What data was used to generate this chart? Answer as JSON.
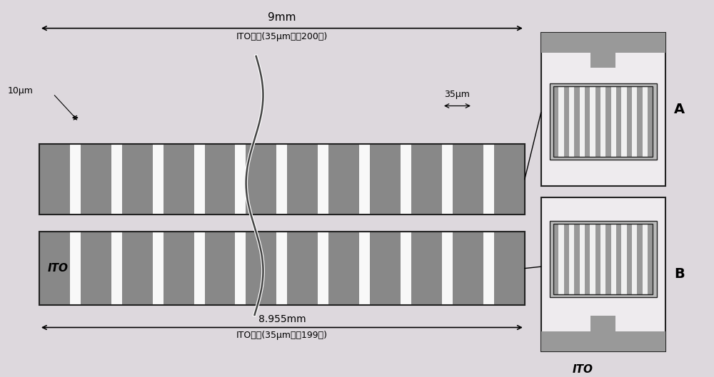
{
  "bg_color": "#ddd8dd",
  "fig_width": 10.0,
  "fig_height": 5.29,
  "label_9mm": "9mm",
  "label_ito_200": "ITO基线(35μm宽、200根)",
  "label_ito_199": "ITO基线(35μm宽、199根)",
  "label_10um": "10μm",
  "label_35um": "35μm",
  "label_8955": "8.955mm",
  "label_ITO_bar": "ITO",
  "label_ITO_bot": "ITO",
  "label_A": "A",
  "label_B": "B",
  "bar_dark": "#888888",
  "bar_white": "#f8f8f8",
  "bar_border": "#222222",
  "panel_bg": "#eeebee",
  "panel_border": "#222222",
  "panel_tab_color": "#999999",
  "panel_inner_border": "#555555",
  "panel_inner_bg": "#bbbbbb",
  "panel_stripe_dark": "#999999",
  "panel_stripe_light": "#f0f0f0"
}
